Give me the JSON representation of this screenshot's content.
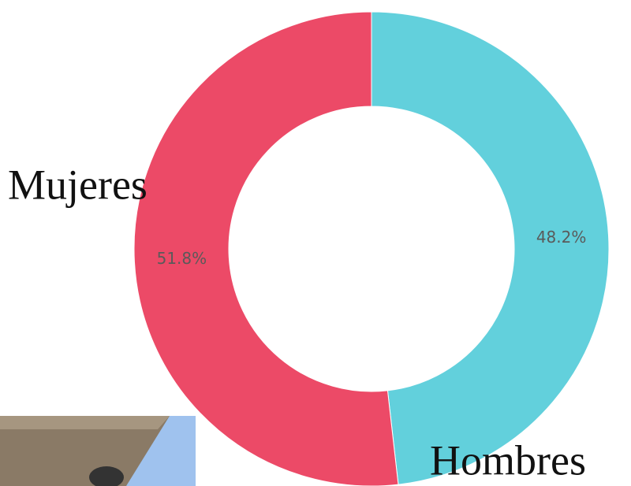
{
  "chart_data": {
    "type": "donut",
    "categories": [
      "Hombres",
      "Mujeres"
    ],
    "values": [
      48.2,
      51.8
    ],
    "value_labels": [
      "48.2%",
      "51.8%"
    ],
    "colors": [
      "#62d0dc",
      "#ec4a67"
    ]
  }
}
